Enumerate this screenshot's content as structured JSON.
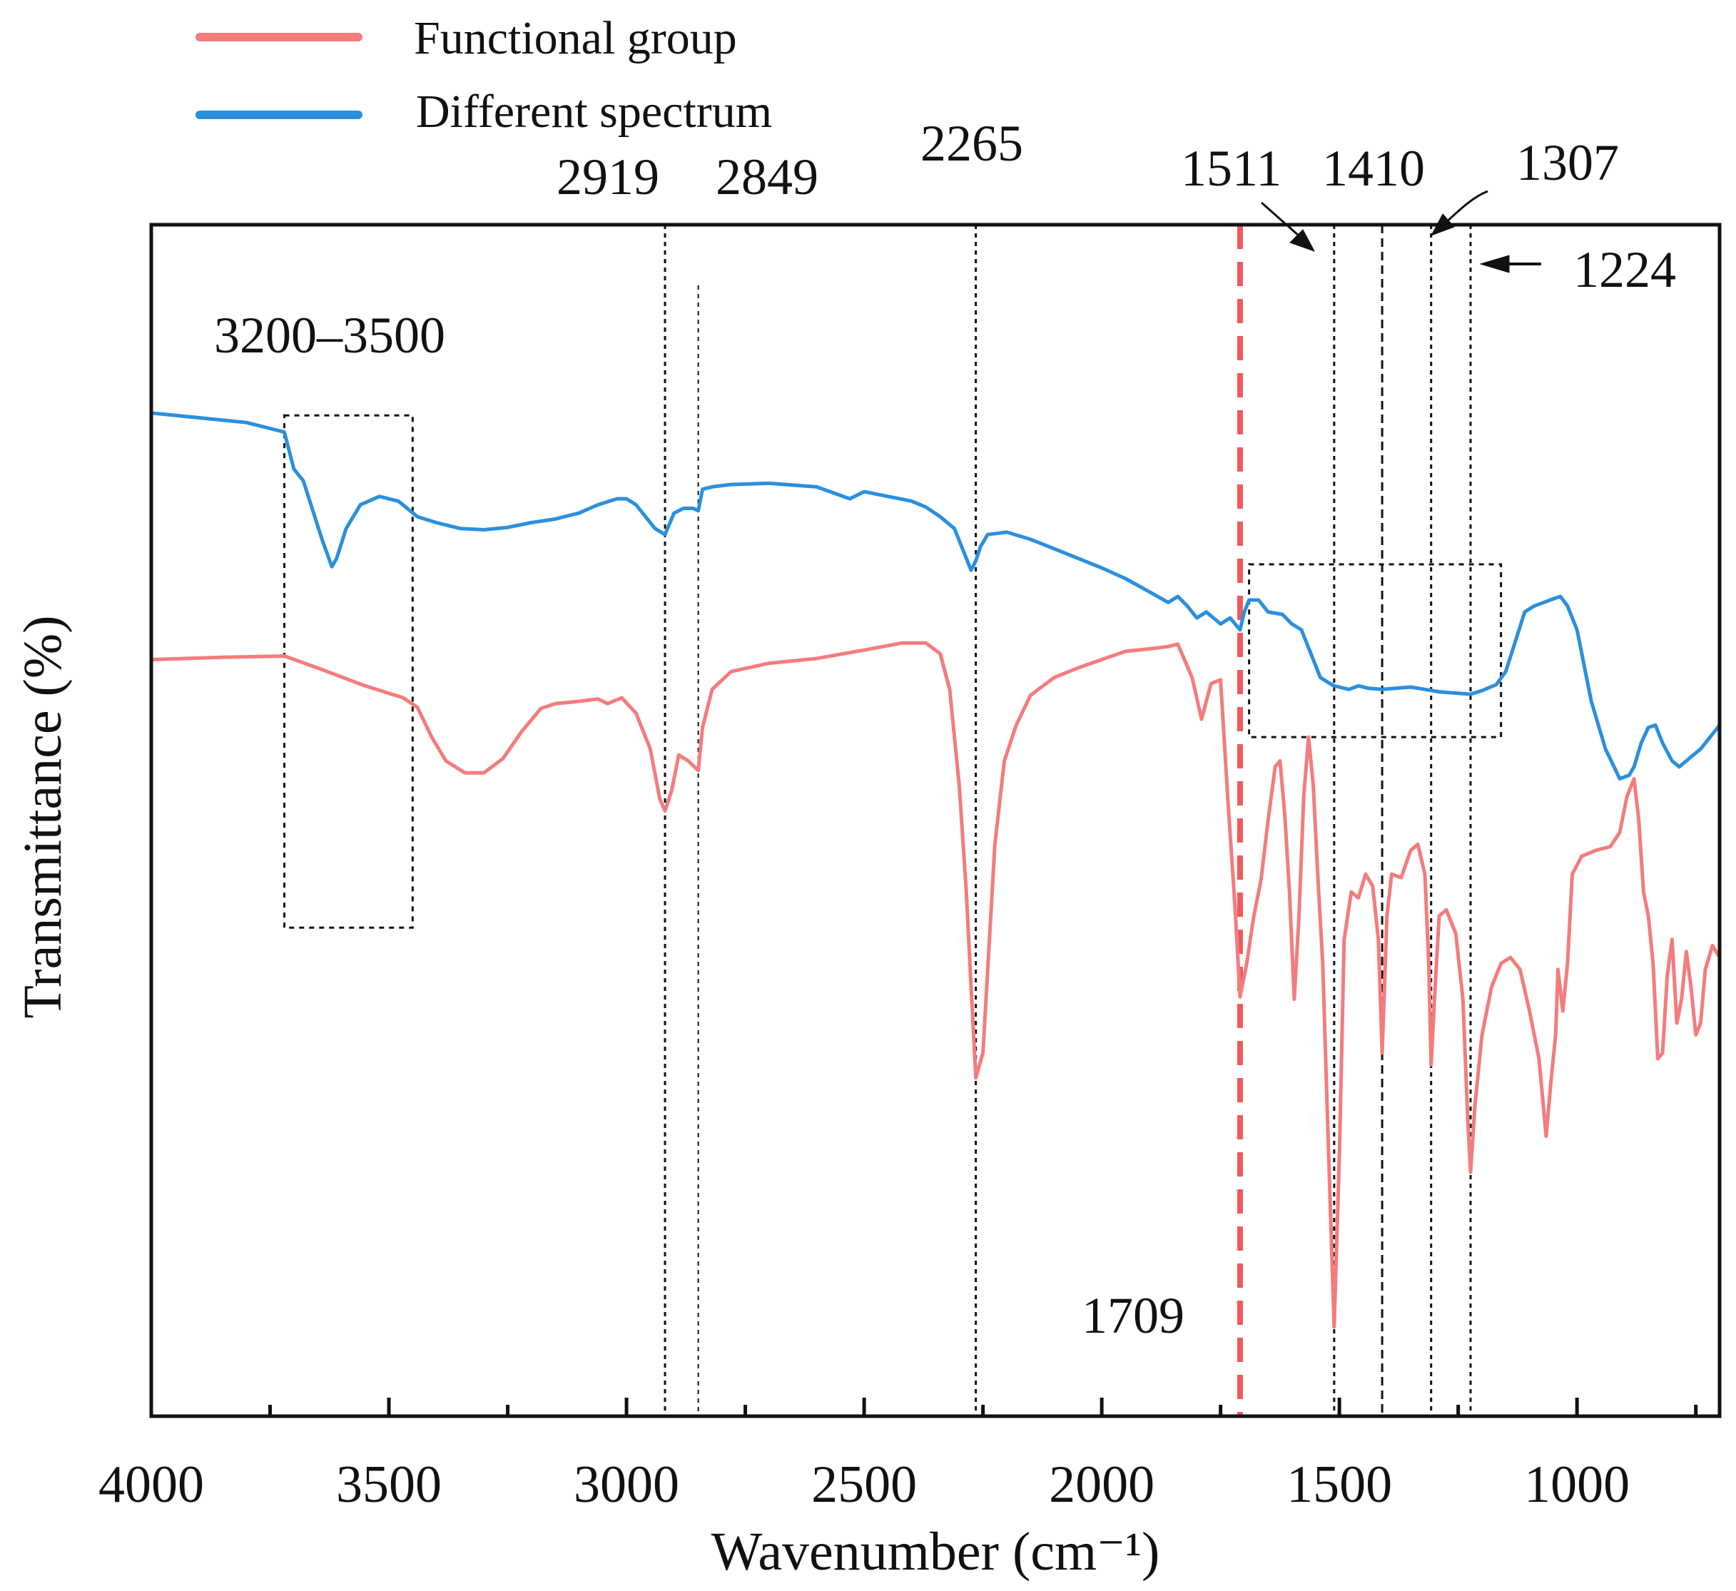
{
  "chart_data": {
    "type": "line",
    "title": "",
    "xlabel": "Wavenumber (cm⁻¹)",
    "ylabel": "Transmittance (%)",
    "xlim": [
      4000,
      700
    ],
    "x_reversed": true,
    "ylim": [
      0,
      100
    ],
    "y_ticks_shown": false,
    "x_ticks": [
      4000,
      3500,
      3000,
      2500,
      2000,
      1500,
      1000
    ],
    "x_tick_labels": [
      "4000",
      "3500",
      "3000",
      "2500",
      "2000",
      "1500",
      "1000"
    ],
    "legend": {
      "position": "top-left",
      "entries": [
        {
          "label": "Functional group",
          "color": "#f47c7c"
        },
        {
          "label": "Different spectrum",
          "color": "#2b8fde"
        }
      ]
    },
    "series": [
      {
        "name": "Functional group",
        "color": "#f47c7c",
        "points": [
          [
            4000,
            63.5
          ],
          [
            3850,
            63.7
          ],
          [
            3720,
            63.8
          ],
          [
            3650,
            62.8
          ],
          [
            3550,
            61.3
          ],
          [
            3470,
            60.3
          ],
          [
            3440,
            59.5
          ],
          [
            3410,
            57.0
          ],
          [
            3380,
            55.0
          ],
          [
            3340,
            54.0
          ],
          [
            3300,
            54.0
          ],
          [
            3260,
            55.2
          ],
          [
            3220,
            57.5
          ],
          [
            3180,
            59.4
          ],
          [
            3150,
            59.8
          ],
          [
            3100,
            60.0
          ],
          [
            3060,
            60.2
          ],
          [
            3040,
            59.8
          ],
          [
            3010,
            60.3
          ],
          [
            2980,
            59.0
          ],
          [
            2950,
            56.0
          ],
          [
            2930,
            51.8
          ],
          [
            2919,
            50.8
          ],
          [
            2905,
            52.5
          ],
          [
            2890,
            55.5
          ],
          [
            2870,
            55.0
          ],
          [
            2849,
            54.2
          ],
          [
            2840,
            57.8
          ],
          [
            2820,
            61.0
          ],
          [
            2780,
            62.5
          ],
          [
            2700,
            63.2
          ],
          [
            2600,
            63.6
          ],
          [
            2500,
            64.3
          ],
          [
            2420,
            64.9
          ],
          [
            2370,
            64.9
          ],
          [
            2340,
            64.0
          ],
          [
            2320,
            61.0
          ],
          [
            2300,
            53.0
          ],
          [
            2285,
            44.0
          ],
          [
            2275,
            36.0
          ],
          [
            2265,
            28.4
          ],
          [
            2250,
            30.5
          ],
          [
            2240,
            37.5
          ],
          [
            2225,
            48.0
          ],
          [
            2205,
            55.0
          ],
          [
            2180,
            58.0
          ],
          [
            2150,
            60.5
          ],
          [
            2100,
            62.0
          ],
          [
            2050,
            62.8
          ],
          [
            2000,
            63.5
          ],
          [
            1950,
            64.2
          ],
          [
            1900,
            64.4
          ],
          [
            1860,
            64.6
          ],
          [
            1840,
            64.8
          ],
          [
            1810,
            62.0
          ],
          [
            1790,
            58.5
          ],
          [
            1770,
            61.5
          ],
          [
            1750,
            61.8
          ],
          [
            1735,
            52.0
          ],
          [
            1720,
            43.0
          ],
          [
            1709,
            35.2
          ],
          [
            1695,
            38.0
          ],
          [
            1680,
            42.0
          ],
          [
            1665,
            45.0
          ],
          [
            1650,
            50.0
          ],
          [
            1635,
            54.5
          ],
          [
            1625,
            55.0
          ],
          [
            1615,
            50.5
          ],
          [
            1605,
            44.0
          ],
          [
            1595,
            35.0
          ],
          [
            1585,
            42.0
          ],
          [
            1575,
            52.0
          ],
          [
            1565,
            57.0
          ],
          [
            1555,
            53.0
          ],
          [
            1545,
            45.0
          ],
          [
            1535,
            38.0
          ],
          [
            1525,
            25.0
          ],
          [
            1511,
            7.5
          ],
          [
            1500,
            22.0
          ],
          [
            1490,
            40.0
          ],
          [
            1475,
            44.0
          ],
          [
            1460,
            43.5
          ],
          [
            1445,
            45.5
          ],
          [
            1430,
            44.5
          ],
          [
            1418,
            40.0
          ],
          [
            1410,
            30.5
          ],
          [
            1400,
            42.0
          ],
          [
            1390,
            45.5
          ],
          [
            1370,
            45.2
          ],
          [
            1350,
            47.5
          ],
          [
            1335,
            48.0
          ],
          [
            1320,
            45.5
          ],
          [
            1312,
            38.0
          ],
          [
            1307,
            29.5
          ],
          [
            1300,
            35.0
          ],
          [
            1290,
            42.0
          ],
          [
            1275,
            42.5
          ],
          [
            1255,
            40.5
          ],
          [
            1240,
            35.0
          ],
          [
            1230,
            25.0
          ],
          [
            1224,
            20.5
          ],
          [
            1215,
            26.0
          ],
          [
            1200,
            32.0
          ],
          [
            1180,
            36.0
          ],
          [
            1160,
            38.0
          ],
          [
            1140,
            38.5
          ],
          [
            1120,
            37.5
          ],
          [
            1100,
            34.0
          ],
          [
            1080,
            30.0
          ],
          [
            1065,
            23.5
          ],
          [
            1055,
            28.0
          ],
          [
            1045,
            32.0
          ],
          [
            1040,
            37.5
          ],
          [
            1030,
            34.0
          ],
          [
            1020,
            38.0
          ],
          [
            1010,
            45.5
          ],
          [
            990,
            47.0
          ],
          [
            960,
            47.5
          ],
          [
            930,
            47.8
          ],
          [
            910,
            49.0
          ],
          [
            895,
            52.0
          ],
          [
            880,
            53.5
          ],
          [
            870,
            50.0
          ],
          [
            860,
            44.0
          ],
          [
            850,
            42.0
          ],
          [
            840,
            38.0
          ],
          [
            830,
            30.0
          ],
          [
            820,
            30.5
          ],
          [
            810,
            37.0
          ],
          [
            800,
            40.0
          ],
          [
            790,
            33.0
          ],
          [
            780,
            35.0
          ],
          [
            770,
            39.0
          ],
          [
            760,
            36.0
          ],
          [
            750,
            32.0
          ],
          [
            740,
            33.0
          ],
          [
            730,
            37.5
          ],
          [
            715,
            39.5
          ],
          [
            700,
            38.5
          ]
        ]
      },
      {
        "name": "Different spectrum",
        "color": "#2b8fde",
        "points": [
          [
            4000,
            84.2
          ],
          [
            3900,
            83.8
          ],
          [
            3800,
            83.4
          ],
          [
            3720,
            82.6
          ],
          [
            3700,
            79.5
          ],
          [
            3680,
            78.5
          ],
          [
            3660,
            76.0
          ],
          [
            3640,
            73.5
          ],
          [
            3620,
            71.3
          ],
          [
            3610,
            72.0
          ],
          [
            3590,
            74.5
          ],
          [
            3560,
            76.5
          ],
          [
            3520,
            77.2
          ],
          [
            3480,
            76.8
          ],
          [
            3440,
            75.5
          ],
          [
            3400,
            75.0
          ],
          [
            3350,
            74.5
          ],
          [
            3300,
            74.4
          ],
          [
            3250,
            74.6
          ],
          [
            3200,
            75.0
          ],
          [
            3150,
            75.3
          ],
          [
            3100,
            75.8
          ],
          [
            3060,
            76.5
          ],
          [
            3020,
            77.0
          ],
          [
            3000,
            77.0
          ],
          [
            2980,
            76.5
          ],
          [
            2960,
            75.5
          ],
          [
            2940,
            74.5
          ],
          [
            2919,
            74.0
          ],
          [
            2900,
            75.8
          ],
          [
            2880,
            76.2
          ],
          [
            2860,
            76.2
          ],
          [
            2849,
            76.0
          ],
          [
            2840,
            77.8
          ],
          [
            2820,
            78.0
          ],
          [
            2780,
            78.2
          ],
          [
            2700,
            78.3
          ],
          [
            2600,
            78.0
          ],
          [
            2530,
            77.0
          ],
          [
            2500,
            77.6
          ],
          [
            2450,
            77.2
          ],
          [
            2400,
            76.8
          ],
          [
            2370,
            76.3
          ],
          [
            2340,
            75.5
          ],
          [
            2310,
            74.5
          ],
          [
            2290,
            72.5
          ],
          [
            2275,
            71.0
          ],
          [
            2265,
            71.8
          ],
          [
            2255,
            73.0
          ],
          [
            2240,
            74.0
          ],
          [
            2200,
            74.2
          ],
          [
            2150,
            73.6
          ],
          [
            2100,
            72.8
          ],
          [
            2050,
            72.0
          ],
          [
            2000,
            71.2
          ],
          [
            1950,
            70.3
          ],
          [
            1900,
            69.2
          ],
          [
            1860,
            68.3
          ],
          [
            1840,
            68.8
          ],
          [
            1820,
            68.0
          ],
          [
            1800,
            67.0
          ],
          [
            1780,
            67.5
          ],
          [
            1750,
            66.5
          ],
          [
            1730,
            67.0
          ],
          [
            1709,
            66.0
          ],
          [
            1700,
            67.5
          ],
          [
            1690,
            68.5
          ],
          [
            1670,
            68.5
          ],
          [
            1650,
            67.5
          ],
          [
            1620,
            67.3
          ],
          [
            1600,
            66.5
          ],
          [
            1580,
            66.0
          ],
          [
            1560,
            64.0
          ],
          [
            1540,
            62.0
          ],
          [
            1520,
            61.5
          ],
          [
            1511,
            61.3
          ],
          [
            1500,
            61.2
          ],
          [
            1480,
            61.0
          ],
          [
            1460,
            61.3
          ],
          [
            1440,
            61.1
          ],
          [
            1410,
            61.0
          ],
          [
            1380,
            61.1
          ],
          [
            1350,
            61.2
          ],
          [
            1320,
            61.0
          ],
          [
            1290,
            60.8
          ],
          [
            1260,
            60.7
          ],
          [
            1224,
            60.6
          ],
          [
            1200,
            60.9
          ],
          [
            1170,
            61.4
          ],
          [
            1150,
            62.5
          ],
          [
            1130,
            65.0
          ],
          [
            1110,
            67.5
          ],
          [
            1090,
            68.0
          ],
          [
            1070,
            68.3
          ],
          [
            1050,
            68.6
          ],
          [
            1035,
            68.8
          ],
          [
            1020,
            68.0
          ],
          [
            1000,
            66.0
          ],
          [
            970,
            60.0
          ],
          [
            940,
            56.0
          ],
          [
            910,
            53.5
          ],
          [
            890,
            53.8
          ],
          [
            880,
            54.5
          ],
          [
            865,
            56.5
          ],
          [
            850,
            57.8
          ],
          [
            835,
            58.0
          ],
          [
            820,
            56.5
          ],
          [
            800,
            55.0
          ],
          [
            785,
            54.5
          ],
          [
            770,
            55.0
          ],
          [
            755,
            55.5
          ],
          [
            740,
            56.0
          ],
          [
            720,
            57.0
          ],
          [
            700,
            58.0
          ]
        ]
      }
    ],
    "annotations": {
      "peak_lines": [
        {
          "x": 2919,
          "label": "2919",
          "style": "dotted"
        },
        {
          "x": 2849,
          "label": "2849",
          "style": "dotted"
        },
        {
          "x": 2265,
          "label": "2265",
          "style": "dotted"
        },
        {
          "x": 1709,
          "label": "1709",
          "style": "dashed-red"
        },
        {
          "x": 1511,
          "label": "1511",
          "style": "dotted"
        },
        {
          "x": 1410,
          "label": "1410",
          "style": "dashed"
        },
        {
          "x": 1307,
          "label": "1307",
          "style": "dotted"
        },
        {
          "x": 1224,
          "label": "1224",
          "style": "dotted"
        }
      ],
      "region_label": "3200–3500",
      "region_boxes": [
        {
          "x_range": [
            3720,
            3450
          ],
          "y_range": [
            41,
            84
          ]
        },
        {
          "x_range": [
            1690,
            1160
          ],
          "y_range": [
            57,
            71.5
          ]
        }
      ]
    }
  }
}
